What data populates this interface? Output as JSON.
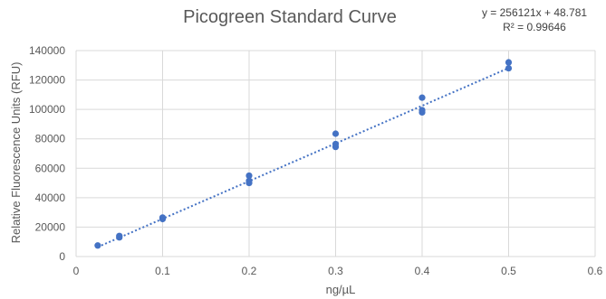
{
  "chart_data": {
    "type": "scatter",
    "title": "Picogreen Standard Curve",
    "xlabel": "ng/µL",
    "ylabel": "Relative Fluorescence Units (RFU)",
    "xlim": [
      0,
      0.6
    ],
    "ylim": [
      0,
      140000
    ],
    "x_ticks": [
      "0",
      "0.1",
      "0.2",
      "0.3",
      "0.4",
      "0.5",
      "0.6"
    ],
    "y_ticks": [
      "0",
      "20000",
      "40000",
      "60000",
      "80000",
      "100000",
      "120000",
      "140000"
    ],
    "grid": true,
    "points": [
      {
        "x": 0.025,
        "y": 7500
      },
      {
        "x": 0.05,
        "y": 13000
      },
      {
        "x": 0.05,
        "y": 14000
      },
      {
        "x": 0.1,
        "y": 25500
      },
      {
        "x": 0.1,
        "y": 26500
      },
      {
        "x": 0.2,
        "y": 50000
      },
      {
        "x": 0.2,
        "y": 51500
      },
      {
        "x": 0.2,
        "y": 55000
      },
      {
        "x": 0.3,
        "y": 74500
      },
      {
        "x": 0.3,
        "y": 76500
      },
      {
        "x": 0.3,
        "y": 83500
      },
      {
        "x": 0.4,
        "y": 98000
      },
      {
        "x": 0.4,
        "y": 99500
      },
      {
        "x": 0.4,
        "y": 108000
      },
      {
        "x": 0.5,
        "y": 128000
      },
      {
        "x": 0.5,
        "y": 132000
      }
    ],
    "trendline": {
      "type": "linear",
      "slope": 256121,
      "intercept": 48.781,
      "x_range": [
        0.025,
        0.5
      ],
      "equation": "y = 256121x + 48.781",
      "r_squared": "R² = 0.99646",
      "style": "dotted"
    },
    "colors": {
      "points": "#4472C4",
      "trendline": "#4472C4",
      "grid": "#D9D9D9",
      "text": "#595959"
    }
  }
}
